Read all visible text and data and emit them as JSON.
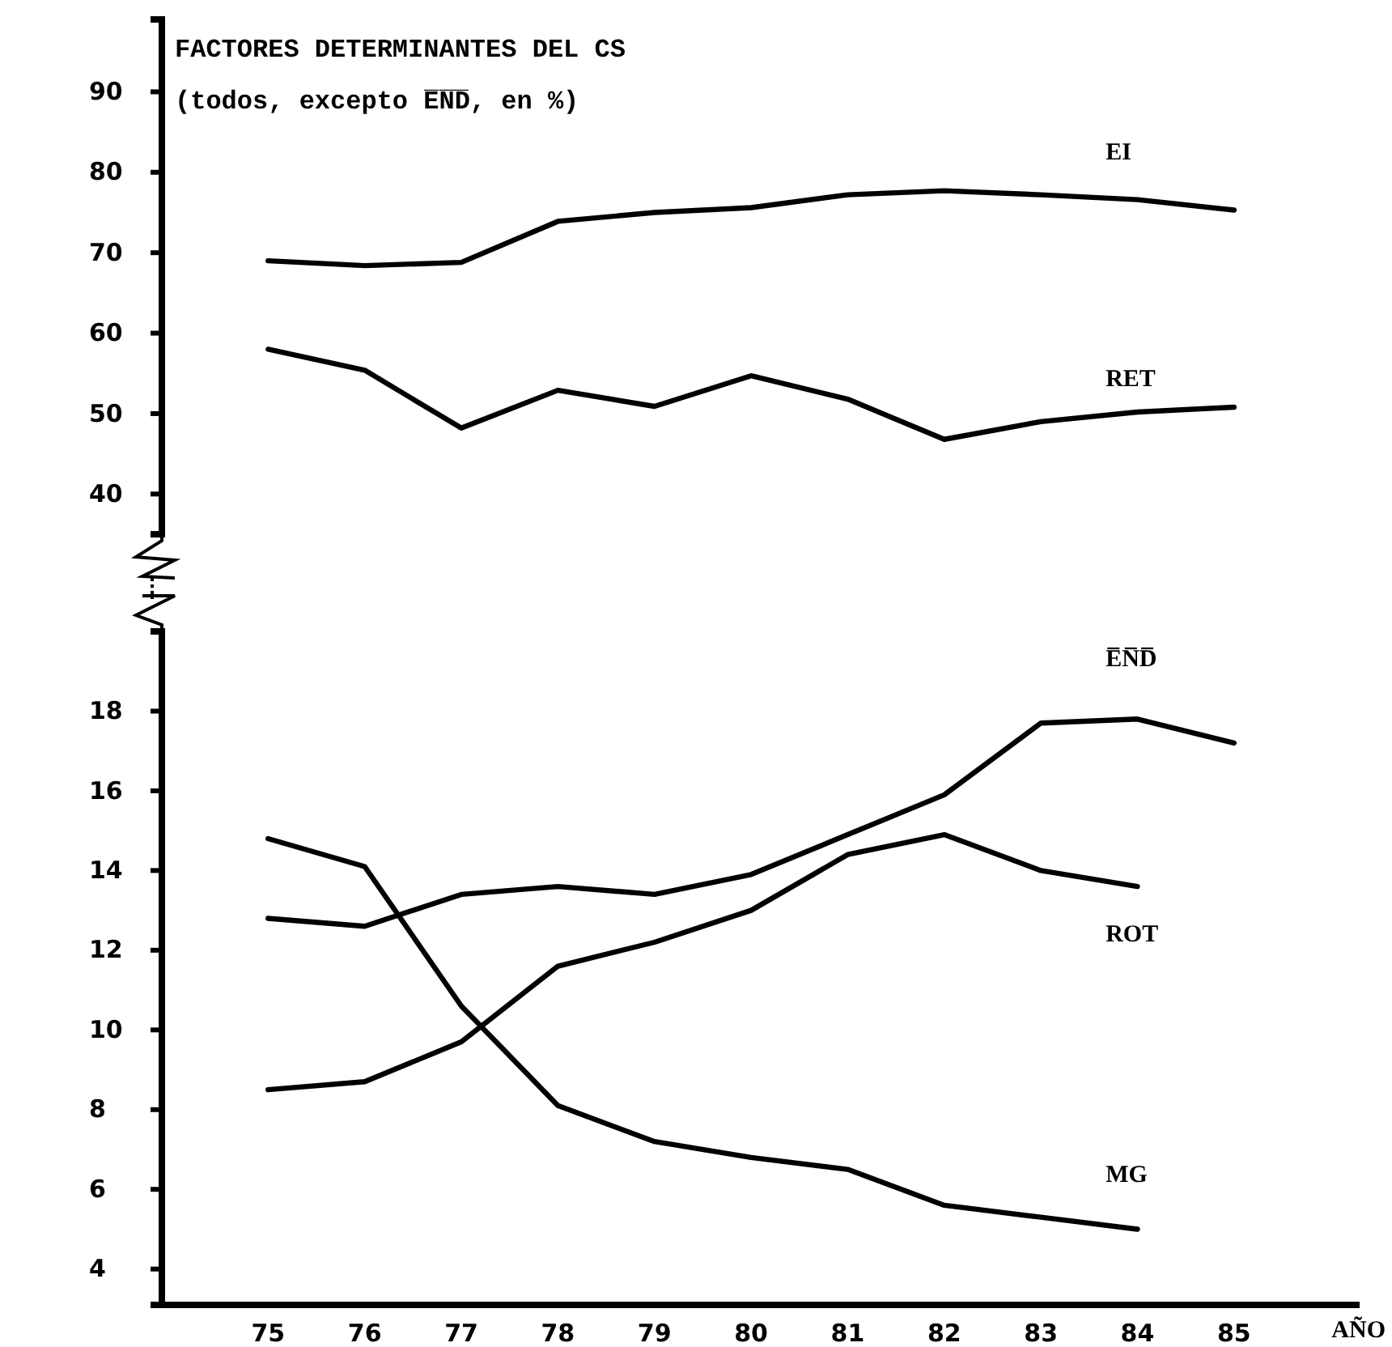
{
  "chart_data": [
    {
      "type": "line",
      "title": "FACTORES DETERMINANTES DEL CS",
      "subtitle": "(todos, excepto E̅N̅D̅, en %)",
      "x": [
        75,
        76,
        77,
        78,
        79,
        80,
        81,
        82,
        83,
        84,
        85
      ],
      "ylim": [
        35,
        99
      ],
      "yticks": [
        40,
        50,
        60,
        70,
        80,
        90
      ],
      "tick_labels": "y",
      "grid": false,
      "line_style": "solid",
      "series": [
        {
          "name": "EI",
          "color": "#000000",
          "values": [
            69.0,
            68.4,
            68.8,
            73.9,
            75.0,
            75.6,
            77.2,
            77.7,
            77.2,
            76.6,
            75.3
          ]
        },
        {
          "name": "RET",
          "color": "#000000",
          "values": [
            58.0,
            55.4,
            48.2,
            52.9,
            50.9,
            54.7,
            51.8,
            46.8,
            49.0,
            50.2,
            50.8
          ]
        }
      ]
    },
    {
      "type": "line",
      "xlabel": "AÑO",
      "x": [
        75,
        76,
        77,
        78,
        79,
        80,
        81,
        82,
        83,
        84,
        85
      ],
      "xlim": [
        73.9,
        86.3
      ],
      "xticks": [
        75,
        76,
        77,
        78,
        79,
        80,
        81,
        82,
        83,
        84,
        85
      ],
      "ylim": [
        3.1,
        20
      ],
      "yticks": [
        4,
        6,
        8,
        10,
        12,
        14,
        16,
        18
      ],
      "grid": false,
      "line_style": "solid",
      "series": [
        {
          "name": "E̅N̅D̅",
          "color": "#000000",
          "values": [
            12.8,
            12.6,
            13.4,
            13.6,
            13.4,
            13.9,
            14.9,
            15.9,
            17.7,
            17.8,
            17.2
          ]
        },
        {
          "name": "ROT",
          "color": "#000000",
          "values": [
            8.5,
            8.7,
            9.7,
            11.6,
            12.2,
            13.0,
            14.4,
            14.9,
            14.0,
            13.6,
            null
          ]
        },
        {
          "name": "MG",
          "color": "#000000",
          "values": [
            14.8,
            14.1,
            10.6,
            8.1,
            7.2,
            6.8,
            6.5,
            5.6,
            5.3,
            5.0,
            null
          ]
        }
      ]
    }
  ]
}
